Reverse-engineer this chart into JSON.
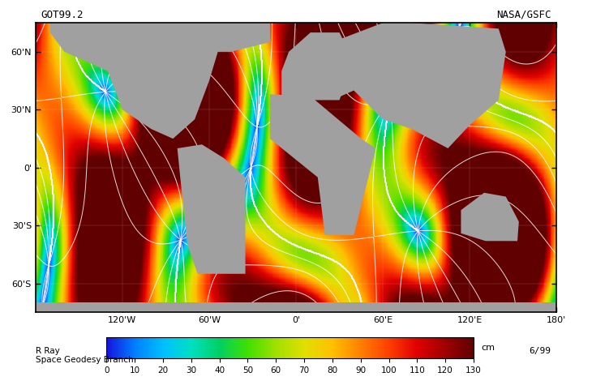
{
  "title_left": "GOT99.2",
  "title_right": "NASA/GSFC",
  "label_left": "R Ray\nSpace Geodesy Branch",
  "label_right": "6/99",
  "colorbar_ticks": [
    0,
    10,
    20,
    30,
    40,
    50,
    60,
    70,
    80,
    90,
    100,
    110,
    120,
    130
  ],
  "colorbar_label": "cm",
  "map_bg_color": "#aaaaaa",
  "land_color": "#888888",
  "border_color": "#000000",
  "colormap_colors": [
    "#1515e0",
    "#0080ff",
    "#00c0ff",
    "#00e0c0",
    "#00d060",
    "#40e000",
    "#a0e000",
    "#e0e000",
    "#ffc000",
    "#ff8000",
    "#ff4000",
    "#e00000",
    "#a00000",
    "#600000"
  ],
  "colormap_values": [
    0,
    10,
    20,
    30,
    40,
    50,
    60,
    70,
    80,
    90,
    100,
    110,
    120,
    130
  ],
  "vmin": 0,
  "vmax": 130,
  "xlim": [
    -180,
    180
  ],
  "ylim": [
    -75,
    75
  ],
  "xticks": [
    -120,
    -60,
    0,
    60,
    120,
    180
  ],
  "xtick_labels": [
    "120'W",
    "60'W",
    "0'",
    "60'E",
    "120'E",
    "180'"
  ],
  "yticks": [
    -60,
    -30,
    0,
    30,
    60
  ],
  "ytick_labels": [
    "60'S",
    "30'S",
    "0'",
    "30'N",
    "60'N"
  ],
  "figsize": [
    7.3,
    4.7
  ],
  "dpi": 100
}
